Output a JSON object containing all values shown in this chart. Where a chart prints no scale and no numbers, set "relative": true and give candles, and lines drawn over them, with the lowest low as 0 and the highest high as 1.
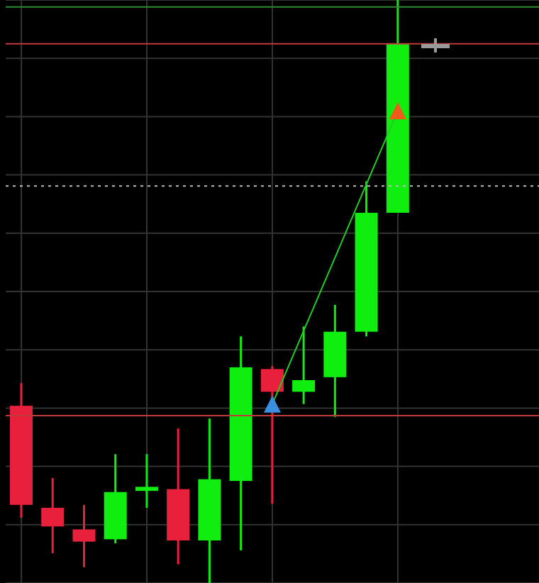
{
  "chart_data": {
    "type": "candlestick",
    "relative": true,
    "categories": [
      null,
      null,
      null,
      null,
      null,
      null,
      null,
      null,
      null,
      null,
      null,
      null,
      null
    ],
    "ohlc": [
      [
        0.304,
        0.343,
        0.112,
        0.134
      ],
      [
        0.129,
        0.18,
        0.051,
        0.097
      ],
      [
        0.092,
        0.134,
        0.027,
        0.071
      ],
      [
        0.075,
        0.221,
        0.068,
        0.156
      ],
      [
        0.158,
        0.221,
        0.129,
        0.165
      ],
      [
        0.161,
        0.265,
        0.032,
        0.073
      ],
      [
        0.073,
        0.282,
        0,
        0.178
      ],
      [
        0.175,
        0.423,
        0.056,
        0.37
      ],
      [
        0.367,
        0.372,
        0.136,
        0.328
      ],
      [
        0.328,
        0.44,
        0.307,
        0.348
      ],
      [
        0.353,
        0.477,
        0.285,
        0.431
      ],
      [
        0.431,
        0.689,
        0.423,
        0.635
      ],
      [
        0.635,
        1,
        0.635,
        0.925
      ]
    ],
    "colors": [
      "#e8203c",
      "#e8203c",
      "#e8203c",
      "#10ee10",
      "#10ee10",
      "#e8203c",
      "#10ee10",
      "#10ee10",
      "#e8203c",
      "#10ee10",
      "#10ee10",
      "#10ee10",
      "#10ee10"
    ],
    "series": [
      {
        "type": "line",
        "color": "#22cc22",
        "values": [
          null,
          null,
          null,
          null,
          null,
          null,
          null,
          null,
          0.307,
          null,
          null,
          null,
          0.81
        ]
      },
      {
        "type": "scatter",
        "color": "#3a8fe0",
        "marker": "triangle",
        "values": [
          null,
          null,
          null,
          null,
          null,
          null,
          null,
          null,
          0.307,
          null,
          null,
          null,
          null
        ]
      },
      {
        "type": "scatter",
        "color": "#f05a1a",
        "marker": "triangle",
        "values": [
          null,
          null,
          null,
          null,
          null,
          null,
          null,
          null,
          null,
          null,
          null,
          null,
          0.81
        ]
      }
    ],
    "ref_lines": [
      {
        "axis": "y",
        "value": 0.988,
        "color": "#2e8b2e",
        "line_style": "solid"
      },
      {
        "axis": "y",
        "value": 0.925,
        "color": "#c0393b",
        "line_style": "solid"
      },
      {
        "axis": "y",
        "value": 0.681,
        "color": "#bbbbbb",
        "line_style": "dotted"
      },
      {
        "axis": "y",
        "value": 0.287,
        "color": "#c0393b",
        "line_style": "solid"
      }
    ],
    "grid": true,
    "tick_labels": false
  }
}
